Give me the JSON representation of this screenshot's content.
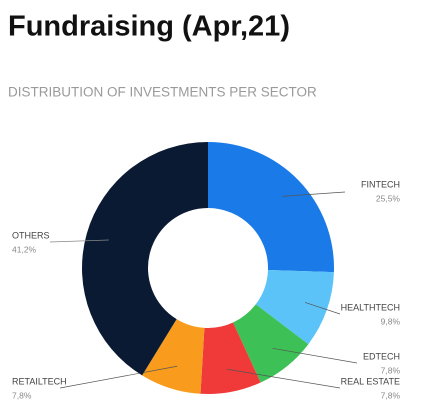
{
  "chart_data": {
    "type": "donut",
    "title": "Fundraising (Apr,21)",
    "subtitle": "DISTRIBUTION OF INVESTMENTS PER SECTOR",
    "categories": [
      "FINTECH",
      "HEALTHTECH",
      "EDTECH",
      "REAL ESTATE",
      "RETAILTECH",
      "OTHERS"
    ],
    "values": [
      25.5,
      9.8,
      7.8,
      7.8,
      7.8,
      41.2
    ],
    "value_labels": [
      "25,5%",
      "9,8%",
      "7,8%",
      "7,8%",
      "7,8%",
      "41,2%"
    ],
    "colors": [
      "#1a7be8",
      "#5cc3f8",
      "#3dc156",
      "#f03a3a",
      "#f99b1c",
      "#0b1a33"
    ]
  }
}
